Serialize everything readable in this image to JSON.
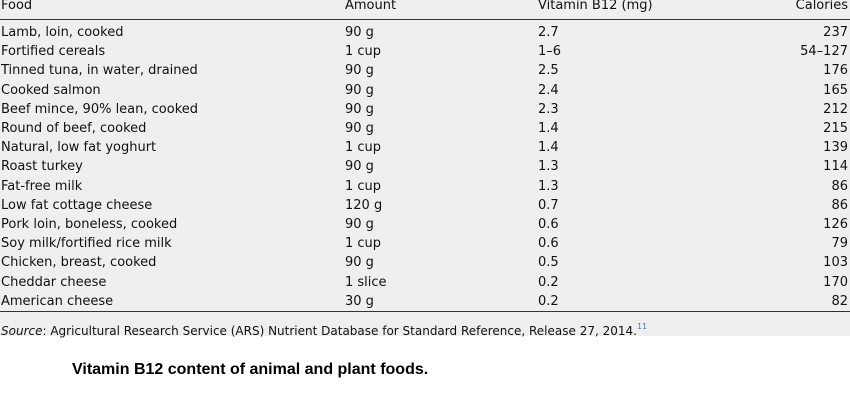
{
  "table": {
    "headers": {
      "food": "Food",
      "amount": "Amount",
      "b12": "Vitamin B12 (mg)",
      "calories": "Calories"
    },
    "rows": [
      {
        "food": "Lamb, loin, cooked",
        "amount": "90 g",
        "b12": "2.7",
        "calories": "237"
      },
      {
        "food": "Fortified cereals",
        "amount": "1 cup",
        "b12": "1–6",
        "calories": "54–127"
      },
      {
        "food": "Tinned tuna, in water, drained",
        "amount": "90 g",
        "b12": "2.5",
        "calories": "176"
      },
      {
        "food": "Cooked salmon",
        "amount": "90 g",
        "b12": "2.4",
        "calories": "165"
      },
      {
        "food": "Beef mince, 90% lean, cooked",
        "amount": "90 g",
        "b12": "2.3",
        "calories": "212"
      },
      {
        "food": "Round of beef, cooked",
        "amount": "90 g",
        "b12": "1.4",
        "calories": "215"
      },
      {
        "food": "Natural, low fat yoghurt",
        "amount": "1 cup",
        "b12": "1.4",
        "calories": "139"
      },
      {
        "food": "Roast turkey",
        "amount": "90 g",
        "b12": "1.3",
        "calories": "114"
      },
      {
        "food": "Fat-free milk",
        "amount": "1 cup",
        "b12": "1.3",
        "calories": "86"
      },
      {
        "food": "Low fat cottage cheese",
        "amount": "120 g",
        "b12": "0.7",
        "calories": "86"
      },
      {
        "food": "Pork loin, boneless, cooked",
        "amount": "90 g",
        "b12": "0.6",
        "calories": "126"
      },
      {
        "food": "Soy milk/fortified rice milk",
        "amount": "1 cup",
        "b12": "0.6",
        "calories": "79"
      },
      {
        "food": "Chicken, breast, cooked",
        "amount": "90 g",
        "b12": "0.5",
        "calories": "103"
      },
      {
        "food": "Cheddar cheese",
        "amount": "1 slice",
        "b12": "0.2",
        "calories": "170"
      },
      {
        "food": "American cheese",
        "amount": "30 g",
        "b12": "0.2",
        "calories": "82"
      }
    ]
  },
  "source": {
    "label": "Source",
    "text": ": Agricultural Research Service (ARS) Nutrient Database for Standard Reference, Release 27, 2014.",
    "ref": "11"
  },
  "caption": "Vitamin B12 content of animal and plant foods."
}
